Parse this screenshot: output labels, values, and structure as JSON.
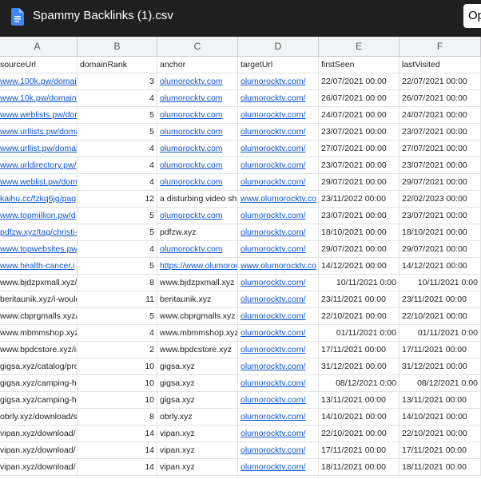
{
  "header": {
    "title": "Spammy Backlinks (1).csv",
    "button": "Op"
  },
  "table": {
    "columns": [
      "A",
      "B",
      "C",
      "D",
      "E",
      "F"
    ],
    "header": [
      "sourceUrl",
      "domainRank",
      "anchor",
      "targetUrl",
      "firstSeen",
      "lastVisited"
    ],
    "rows": [
      [
        "www.100k.pw/domair",
        3,
        "olumorocktv.com",
        "olumorocktv.com/",
        "22/07/2021 00:00",
        "22/07/2021 00:00"
      ],
      [
        "www.10k.pw/domain-",
        4,
        "olumorocktv.com",
        "olumorocktv.com/",
        "26/07/2021 00:00",
        "26/07/2021 00:00"
      ],
      [
        "www.weblists.pw/dom",
        5,
        "olumorocktv.com",
        "olumorocktv.com/",
        "24/07/2021 00:00",
        "24/07/2021 00:00"
      ],
      [
        "www.urllists.pw/doma",
        5,
        "olumorocktv.com",
        "olumorocktv.com/",
        "23/07/2021 00:00",
        "23/07/2021 00:00"
      ],
      [
        "www.urllist.pw/domai",
        4,
        "olumorocktv.com",
        "olumorocktv.com/",
        "27/07/2021 00:00",
        "27/07/2021 00:00"
      ],
      [
        "www.urldirectory.pw/",
        4,
        "olumorocktv.com",
        "olumorocktv.com/",
        "23/07/2021 00:00",
        "23/07/2021 00:00"
      ],
      [
        "www.weblist.pw/doma",
        4,
        "olumorocktv.com",
        "olumorocktv.com/",
        "29/07/2021 00:00",
        "29/07/2021 00:00"
      ],
      [
        "kaihu.cc/fzkq6jg/pag",
        12,
        "a disturbing video sh",
        "www.olumorocktv.co",
        "23/11/2022 00:00",
        "22/02/2023 00:00"
      ],
      [
        "www.topmillion.pw/d",
        5,
        "olumorocktv.com",
        "olumorocktv.com/",
        "23/07/2021 00:00",
        "23/07/2021 00:00"
      ],
      [
        "pdfzw.xyz/tag/christi-",
        5,
        "pdfzw.xyz",
        "olumorocktv.com/",
        "18/10/2021 00:00",
        "18/10/2021 00:00"
      ],
      [
        "www.topwebsites.pw/",
        4,
        "olumorocktv.com",
        "olumorocktv.com/",
        "29/07/2021 00:00",
        "29/07/2021 00:00"
      ],
      [
        "www.health-cancer.i",
        5,
        "https://www.olumoroc",
        "www.olumorocktv.co",
        "14/12/2021 00:00",
        "14/12/2021 00:00"
      ],
      [
        "www.bjdzpxmall.xyz/",
        8,
        "www.bjdzpxmall.xyz",
        "olumorocktv.com/",
        "10/11/2021 0:00",
        "10/11/2021 0:00"
      ],
      [
        "beritaunik.xyz/i-would",
        11,
        "beritaunik.xyz",
        "olumorocktv.com/",
        "23/11/2021 00:00",
        "23/11/2021 00:00"
      ],
      [
        "www.cbprgmalls.xyz/",
        5,
        "www.cbprgmalls.xyz",
        "olumorocktv.com/",
        "22/10/2021 00:00",
        "22/10/2021 00:00"
      ],
      [
        "www.mbmmshop.xyz",
        4,
        "www.mbmmshop.xyz",
        "olumorocktv.com/",
        "01/11/2021 0:00",
        "01/11/2021 0:00"
      ],
      [
        "www.bpdcstore.xyz/ir",
        2,
        "www.bpdcstore.xyz",
        "olumorocktv.com/",
        "17/11/2021 00:00",
        "17/11/2021 00:00"
      ],
      [
        "gigsa.xyz/catalog/pro",
        10,
        "gigsa.xyz",
        "olumorocktv.com/",
        "31/12/2021 00:00",
        "31/12/2021 00:00"
      ],
      [
        "gigsa.xyz/camping-h",
        10,
        "gigsa.xyz",
        "olumorocktv.com/",
        "08/12/2021 0:00",
        "08/12/2021 0:00"
      ],
      [
        "gigsa.xyz/camping-h",
        10,
        "gigsa.xyz",
        "olumorocktv.com/",
        "13/11/2021 00:00",
        "13/11/2021 00:00"
      ],
      [
        "obrly.xyz/download/s",
        8,
        "obrly.xyz",
        "olumorocktv.com/",
        "14/10/2021 00:00",
        "14/10/2021 00:00"
      ],
      [
        "vipan.xyz/download/",
        14,
        "vipan.xyz",
        "olumorocktv.com/",
        "22/10/2021 00:00",
        "22/10/2021 00:00"
      ],
      [
        "vipan.xyz/download/",
        14,
        "vipan.xyz",
        "olumorocktv.com/",
        "17/11/2021 00:00",
        "17/11/2021 00:00"
      ],
      [
        "vipan.xyz/download/",
        14,
        "vipan.xyz",
        "olumorocktv.com/",
        "18/11/2021 00:00",
        "18/11/2021 00:00"
      ]
    ]
  }
}
